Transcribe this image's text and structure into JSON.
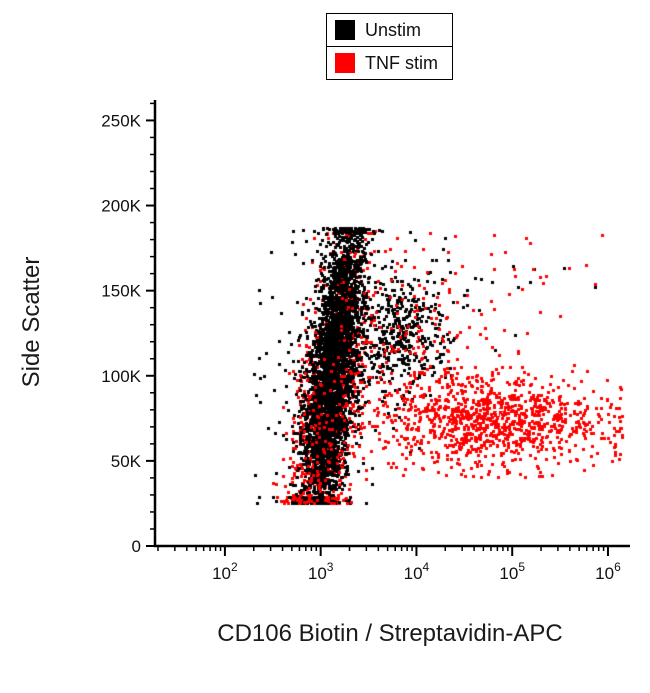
{
  "chart_data": {
    "type": "scatter",
    "title": "",
    "xlabel": "CD106 Biotin / Streptavidin-APC",
    "ylabel": "Side Scatter",
    "x_scale": "log10",
    "x_domain_log10": [
      1.27,
      6.23
    ],
    "y_domain": [
      0,
      262000
    ],
    "x_ticks": [
      {
        "exponent": 2
      },
      {
        "exponent": 3
      },
      {
        "exponent": 4
      },
      {
        "exponent": 5
      },
      {
        "exponent": 6
      }
    ],
    "x_minor_multiples": [
      2,
      3,
      4,
      5,
      6,
      7,
      8,
      9
    ],
    "y_ticks": [
      {
        "value": 0,
        "label": "0"
      },
      {
        "value": 50000,
        "label": "50K"
      },
      {
        "value": 100000,
        "label": "100K"
      },
      {
        "value": 150000,
        "label": "150K"
      },
      {
        "value": 200000,
        "label": "200K"
      },
      {
        "value": 250000,
        "label": "250K"
      }
    ],
    "y_minor_step": 10000,
    "grid": false,
    "legend_position": "top-center",
    "background": "#ffffff",
    "marker": "square",
    "marker_size_px": 3,
    "series": [
      {
        "name": "Unstim",
        "color": "#000000"
      },
      {
        "name": "TNF stim",
        "color": "#ff0000"
      }
    ],
    "populations": [
      {
        "series": "TNF stim",
        "color": "#ff0000",
        "n": 900,
        "x_mean": 2.88,
        "x_sd": 0.16,
        "x_per_100k_y": 0.22,
        "y_mean": 85000,
        "y_sd": 50000,
        "y_clip": [
          25000,
          186000
        ],
        "x_clip": [
          2.45,
          3.9
        ]
      },
      {
        "series": "Unstim",
        "color": "#000000",
        "n": 300,
        "x_mean": 2.95,
        "x_sd": 0.4,
        "x_per_100k_y": 0.2,
        "y_mean": 100000,
        "y_sd": 45000,
        "y_clip": [
          25000,
          186000
        ],
        "x_clip": [
          2.3,
          4.8
        ]
      },
      {
        "series": "Unstim",
        "color": "#000000",
        "n": 3500,
        "x_mean": 2.9,
        "x_sd": 0.12,
        "x_per_100k_y": 0.22,
        "y_mean": 102000,
        "y_sd": 44000,
        "y_clip": [
          25000,
          187000
        ],
        "x_clip": [
          2.55,
          3.8
        ]
      },
      {
        "series": "Unstim",
        "color": "#000000",
        "n": 350,
        "x_mean": 3.85,
        "x_sd": 0.22,
        "x_per_100k_y": 0,
        "y_mean": 124000,
        "y_sd": 16000,
        "y_clip": [
          70000,
          186000
        ],
        "x_clip": [
          3.3,
          4.5
        ]
      },
      {
        "series": "Unstim",
        "color": "#000000",
        "n": 35,
        "x_mean": 4.6,
        "x_sd": 0.55,
        "x_per_100k_y": 0,
        "y_mean": 150000,
        "y_sd": 22000,
        "y_clip": [
          100000,
          186000
        ],
        "x_clip": [
          3.6,
          5.9
        ]
      },
      {
        "series": "TNF stim",
        "color": "#ff0000",
        "n": 240,
        "x_mean": 4.0,
        "x_sd": 0.5,
        "x_per_100k_y": 0,
        "y_mean": 105000,
        "y_sd": 28000,
        "y_clip": [
          45000,
          175000
        ],
        "x_clip": [
          3.2,
          5.7
        ]
      },
      {
        "series": "TNF stim",
        "color": "#ff0000",
        "n": 950,
        "x_mean": 4.85,
        "x_sd": 0.6,
        "x_per_100k_y": 0,
        "y_mean": 74000,
        "y_sd": 13000,
        "y_clip": [
          40000,
          120000
        ],
        "x_clip": [
          3.3,
          6.15
        ]
      },
      {
        "series": "TNF stim",
        "color": "#ff0000",
        "n": 160,
        "x_mean": 2.9,
        "x_sd": 0.2,
        "x_per_100k_y": 0.22,
        "y_mean": 55000,
        "y_sd": 30000,
        "y_clip": [
          25000,
          186000
        ],
        "x_clip": [
          2.45,
          3.9
        ]
      },
      {
        "series": "TNF stim",
        "color": "#ff0000",
        "n": 45,
        "x_mean": 4.5,
        "x_sd": 0.75,
        "x_per_100k_y": 0,
        "y_mean": 150000,
        "y_sd": 22000,
        "y_clip": [
          112000,
          184000
        ],
        "x_clip": [
          3.2,
          6.0
        ]
      }
    ],
    "median_marker": {
      "x_log10": 4.85,
      "y": 80000,
      "color": "#ffffff"
    }
  }
}
